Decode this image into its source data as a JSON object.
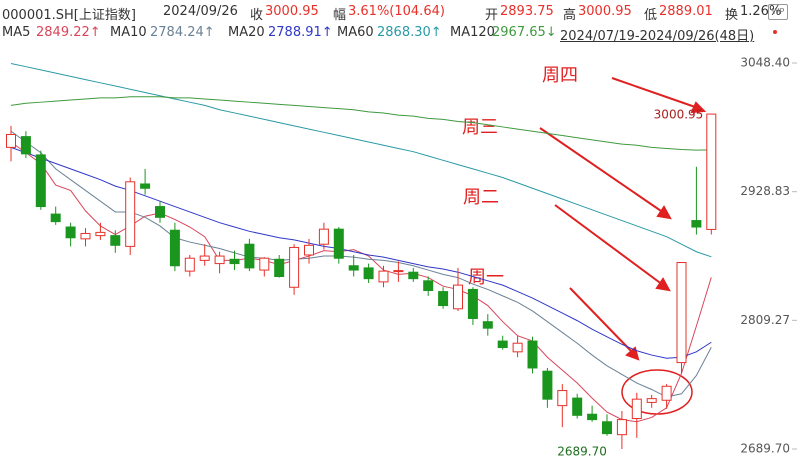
{
  "header": {
    "symbol": "000001.SH[上证指数]",
    "date": "2024/09/26",
    "fields": [
      {
        "label": "收",
        "value": "3000.95"
      },
      {
        "label": "幅",
        "value": "3.61%(104.64)"
      },
      {
        "label": "开",
        "value": "2893.75"
      },
      {
        "label": "高",
        "value": "3000.95"
      },
      {
        "label": "低",
        "value": "2889.01"
      },
      {
        "label": "换",
        "value": "1.26%"
      }
    ],
    "range": "2024/07/19-2024/09/26(48日)"
  },
  "chart_data": {
    "type": "candlestick",
    "open": [
      2970,
      2980,
      2963,
      2908,
      2896,
      2885,
      2888,
      2888,
      2878,
      2936,
      2915,
      2893,
      2855,
      2865,
      2862,
      2866,
      2880,
      2856,
      2866,
      2840,
      2870,
      2880,
      2894,
      2860,
      2858,
      2845,
      2855,
      2854,
      2846,
      2836,
      2820,
      2838,
      2808,
      2790,
      2780,
      2790,
      2762,
      2730,
      2737,
      2722,
      2715,
      2703,
      2718,
      2733,
      2735,
      2770,
      2902,
      2893.75
    ],
    "high": [
      2990,
      2985,
      2967,
      2915,
      2900,
      2895,
      2900,
      2893,
      2942,
      2950,
      2920,
      2900,
      2870,
      2880,
      2873,
      2874,
      2885,
      2868,
      2870,
      2880,
      2885,
      2900,
      2896,
      2870,
      2862,
      2860,
      2864,
      2858,
      2850,
      2840,
      2858,
      2840,
      2815,
      2795,
      2795,
      2794,
      2765,
      2750,
      2741,
      2730,
      2722,
      2725,
      2742,
      2740,
      2750,
      2863,
      2952,
      3000.95
    ],
    "low": [
      2957,
      2960,
      2912,
      2898,
      2878,
      2878,
      2884,
      2872,
      2870,
      2926,
      2900,
      2855,
      2850,
      2860,
      2853,
      2856,
      2855,
      2850,
      2849,
      2833,
      2862,
      2875,
      2862,
      2850,
      2844,
      2840,
      2845,
      2845,
      2832,
      2820,
      2818,
      2805,
      2795,
      2782,
      2775,
      2760,
      2728,
      2710,
      2718,
      2715,
      2702,
      2689.7,
      2700,
      2728,
      2727,
      2760,
      2889,
      2889.01
    ],
    "close": [
      2982,
      2964,
      2915,
      2901,
      2886,
      2890,
      2891,
      2879,
      2938,
      2932,
      2905,
      2860,
      2867,
      2869,
      2869,
      2862,
      2858,
      2867,
      2850,
      2877,
      2879,
      2894,
      2867,
      2856,
      2848,
      2855,
      2855.5,
      2848,
      2837,
      2823,
      2842,
      2811,
      2802,
      2784,
      2788,
      2765,
      2736,
      2744,
      2721,
      2717,
      2704,
      2717,
      2736,
      2736.5,
      2748,
      2863,
      2896,
      3000.95
    ],
    "up_color": "#e8302a",
    "down_color": "#1a961e",
    "ylim": [
      2680.4,
      3060.5
    ],
    "yticks": [
      {
        "value": 3048.4,
        "label": "3048.40"
      },
      {
        "value": 2928.83,
        "label": "2928.83"
      },
      {
        "value": 2809.27,
        "label": "2809.27"
      },
      {
        "value": 2689.7,
        "label": "2689.70"
      }
    ],
    "series": [
      {
        "name": "MA5",
        "latest_label": "2849.22↑",
        "color": "#d9455a",
        "values": [
          2975,
          2965,
          2955,
          2935,
          2930,
          2911,
          2897,
          2889,
          2897,
          2906,
          2909,
          2903,
          2896,
          2887,
          2865,
          2865,
          2867,
          2865,
          2861,
          2865,
          2869,
          2874,
          2873,
          2875,
          2869,
          2856,
          2852,
          2853,
          2849,
          2841,
          2838,
          2832,
          2823,
          2808,
          2795,
          2790,
          2775,
          2763,
          2751,
          2737,
          2724,
          2717,
          2715,
          2719,
          2728,
          2760,
          2804,
          2849.22
        ]
      },
      {
        "name": "MA10",
        "latest_label": "2784.24↑",
        "color": "#6a8296",
        "values": [
          2985,
          2975,
          2965,
          2950,
          2940,
          2930,
          2920,
          2910,
          2910,
          2905,
          2897,
          2886,
          2882,
          2879,
          2876,
          2872,
          2868,
          2867,
          2865,
          2866,
          2867,
          2869,
          2869,
          2868,
          2866,
          2865,
          2863,
          2860,
          2856,
          2852,
          2849,
          2843,
          2838,
          2832,
          2826,
          2818,
          2808,
          2798,
          2788,
          2777,
          2767,
          2759,
          2751,
          2745,
          2738,
          2741,
          2758,
          2784.24
        ]
      },
      {
        "name": "MA20",
        "latest_label": "2788.91↑",
        "color": "#3038c8",
        "values": [
          2970,
          2965,
          2960,
          2955,
          2950,
          2945,
          2940,
          2934,
          2930,
          2925,
          2920,
          2915,
          2910,
          2905,
          2900,
          2896,
          2892,
          2889,
          2886,
          2884,
          2881,
          2878,
          2876,
          2873,
          2870,
          2868,
          2865,
          2862,
          2859,
          2857,
          2854,
          2850,
          2846,
          2842,
          2836,
          2830,
          2823,
          2816,
          2809,
          2801,
          2794,
          2787,
          2781,
          2777,
          2774,
          2775,
          2780,
          2788.91
        ]
      },
      {
        "name": "MA60",
        "latest_label": "2868.30↑",
        "color": "#2a9aa6",
        "values": [
          3048,
          3045,
          3042,
          3039,
          3036,
          3033,
          3030,
          3027,
          3024,
          3021,
          3018,
          3015,
          3012,
          3009,
          3005,
          3002,
          2999,
          2996,
          2993,
          2990,
          2987,
          2984,
          2981,
          2978,
          2975,
          2972,
          2969,
          2966,
          2962,
          2958,
          2954,
          2950,
          2946,
          2942,
          2937,
          2932,
          2927,
          2922,
          2917,
          2912,
          2907,
          2902,
          2897,
          2892,
          2887,
          2880,
          2873,
          2868.3
        ]
      },
      {
        "name": "MA120",
        "latest_label": "2967.65↓",
        "color": "#3f9a3f",
        "values": [
          3009,
          3011,
          3012,
          3013,
          3014,
          3015,
          3016,
          3016,
          3017,
          3017,
          3017,
          3016,
          3016,
          3015,
          3014,
          3013,
          3012,
          3011,
          3010,
          3009,
          3008,
          3007,
          3006,
          3005,
          3003,
          3002,
          3000,
          2999,
          2997,
          2996,
          2994,
          2993,
          2991,
          2989,
          2987,
          2985,
          2983,
          2981,
          2979,
          2977,
          2975,
          2973,
          2972,
          2970,
          2969,
          2968,
          2967.5,
          2967.65
        ]
      }
    ],
    "value_labels": [
      {
        "index": 47,
        "value": 3000.95,
        "label": "3000.95",
        "color": "#a82020"
      },
      {
        "index": 41,
        "value": 2689.7,
        "label": "2689.70",
        "color": "#1f6e1f"
      }
    ],
    "annotations": [
      "周四",
      "周三",
      "周二",
      "周一"
    ]
  }
}
